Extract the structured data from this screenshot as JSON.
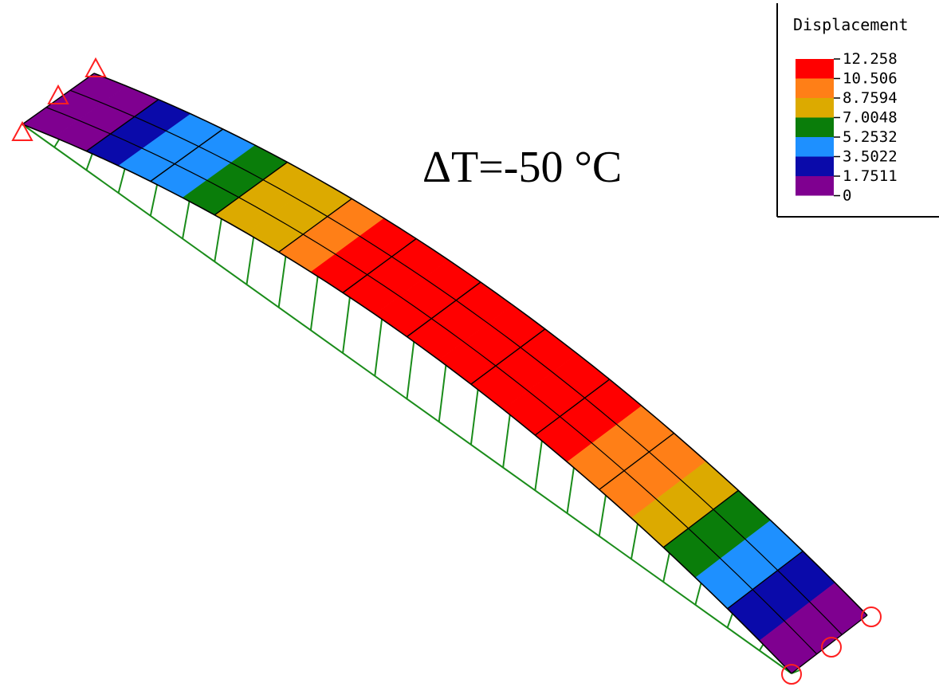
{
  "annotation": "ΔT=-50 °C",
  "legend": {
    "title": "Displacement",
    "labels": [
      "12.258",
      "10.506",
      "8.7594",
      "7.0048",
      "5.2532",
      "3.5022",
      "1.7511",
      "0"
    ],
    "bands": [
      "#ff0000",
      "#ff7f17",
      "#dcaa00",
      "#0a7d0a",
      "#1e90ff",
      "#0a0aaa",
      "#7f0090"
    ]
  },
  "palette": {
    "violet": "#7f0090",
    "navy": "#0a0aaa",
    "blue": "#1e90ff",
    "green": "#0a7d0a",
    "yellow": "#dcaa00",
    "orange": "#ff7f17",
    "red": "#ff0000",
    "undeformed_mesh": "#1a8c1a",
    "supports": "#ff2020",
    "mesh_lines": "#000000"
  },
  "beam": {
    "segments": 24,
    "element_colors": [
      "violet",
      "violet",
      "navy",
      "blue",
      "blue",
      "green",
      "yellow",
      "yellow",
      "orange",
      "red",
      "red",
      "red",
      "red",
      "red",
      "red",
      "red",
      "red",
      "orange",
      "orange",
      "yellow",
      "green",
      "blue",
      "navy",
      "violet"
    ],
    "supports_left": "pinned (triangles)",
    "supports_right": "roller (circles)"
  }
}
